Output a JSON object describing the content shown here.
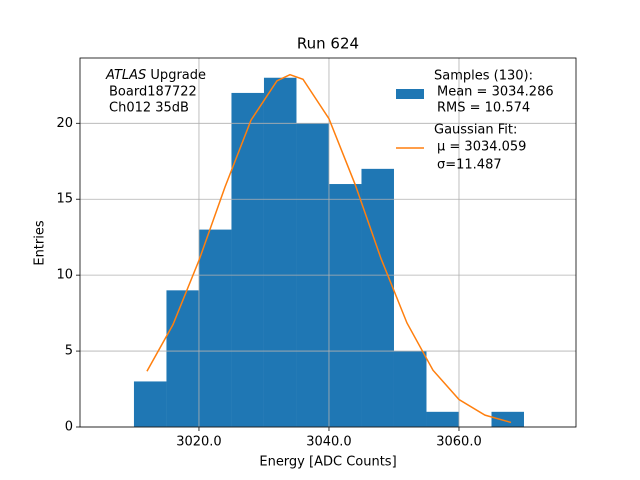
{
  "chart_data": {
    "type": "histogram",
    "title": "Run 624",
    "xlabel": "Energy [ADC Counts]",
    "ylabel": "Entries",
    "bins": [
      3010,
      3015,
      3020,
      3025,
      3030,
      3035,
      3040,
      3045,
      3050,
      3055,
      3060,
      3065,
      3070
    ],
    "values": [
      3,
      9,
      13,
      22,
      23,
      20,
      16,
      17,
      5,
      1,
      0,
      1
    ],
    "name": "Samples (130):",
    "stats": [
      "Mean = 3034.286",
      "RMS = 10.574"
    ],
    "color": "#1f77b4",
    "fit": {
      "type": "line",
      "name": "Gaussian Fit:",
      "stats": [
        "μ = 3034.059",
        "σ=11.487"
      ],
      "color": "#ff7f0e",
      "x": [
        3012,
        3016,
        3020,
        3024,
        3028,
        3032,
        3034,
        3036,
        3040,
        3044,
        3048,
        3052,
        3056,
        3060,
        3064,
        3068
      ],
      "y": [
        3.67,
        6.74,
        10.97,
        15.8,
        20.2,
        22.8,
        23.2,
        22.9,
        20.3,
        16.0,
        11.1,
        6.85,
        3.74,
        1.81,
        0.78,
        0.3
      ]
    },
    "annotation": {
      "italic": "ATLAS",
      "text": "Upgrade",
      "lines": [
        "Board187722",
        "Ch012 35dB"
      ]
    },
    "xlim": [
      3001.7,
      3078
    ],
    "ylim": [
      0,
      24.3
    ],
    "xticks": [
      {
        "value": 3020,
        "label": "3020.0"
      },
      {
        "value": 3040,
        "label": "3040.0"
      },
      {
        "value": 3060,
        "label": "3060.0"
      }
    ],
    "yticks": [
      0,
      5,
      10,
      15,
      20
    ],
    "grid": true,
    "legend": "upper right"
  }
}
